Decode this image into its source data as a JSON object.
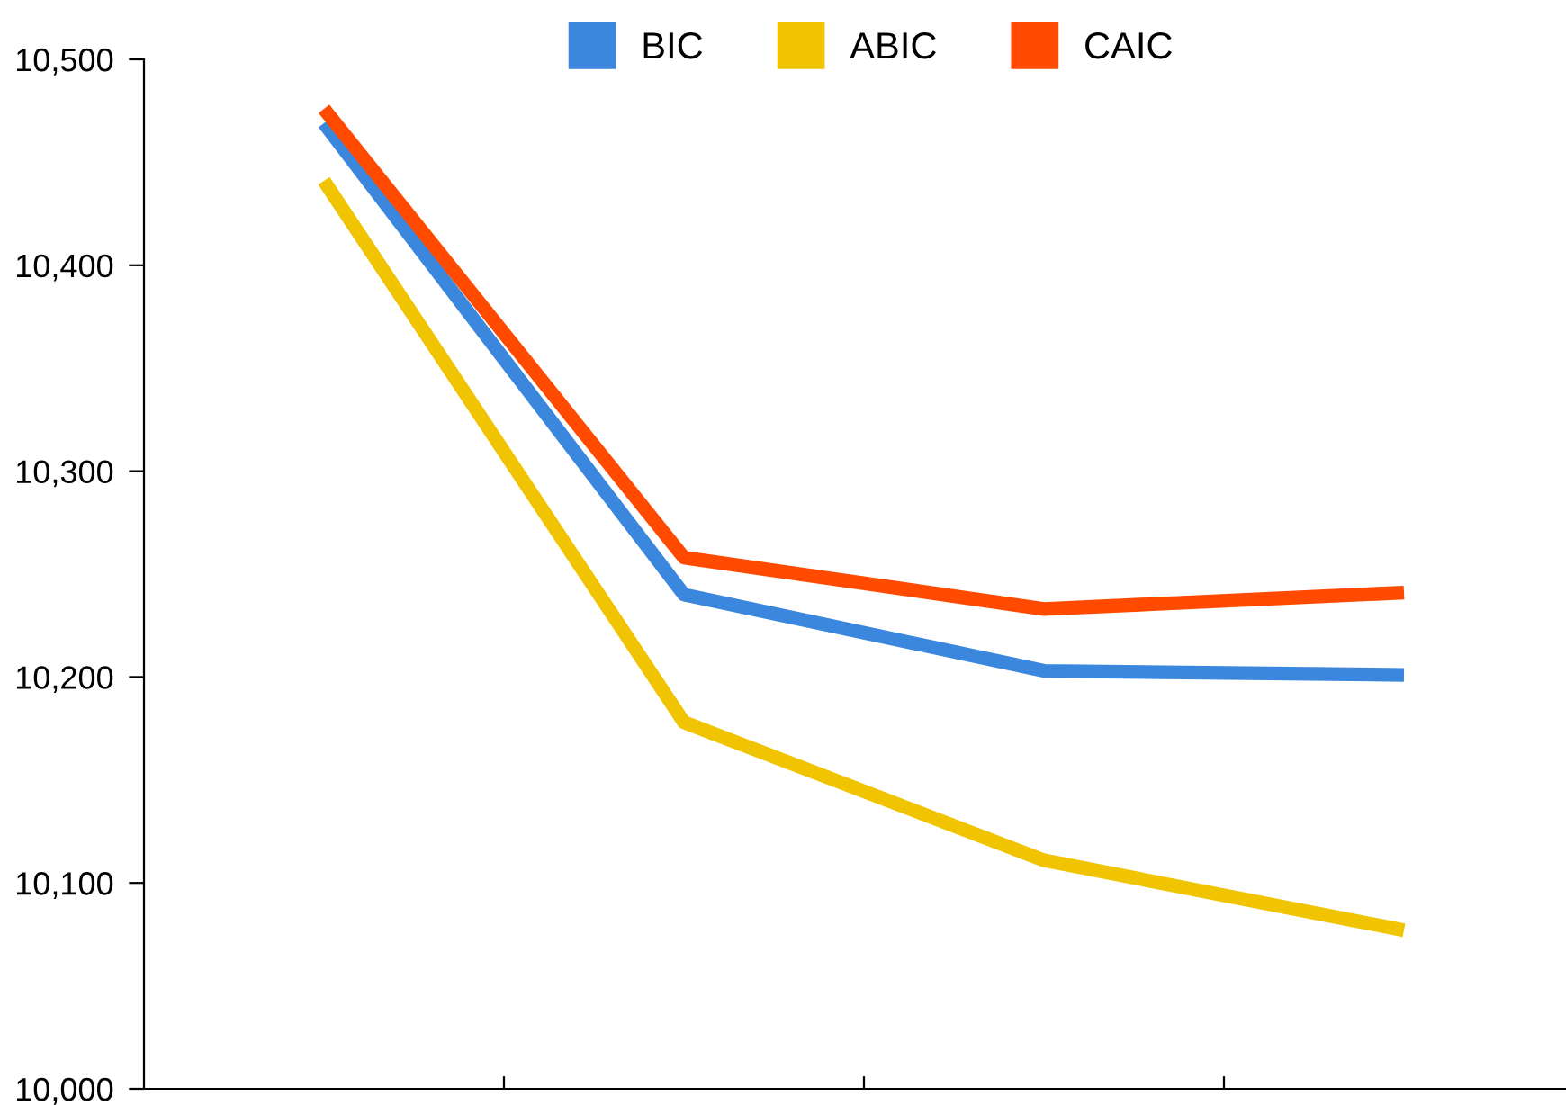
{
  "chart_data": {
    "type": "line",
    "categories": [
      null,
      null,
      null,
      null
    ],
    "series": [
      {
        "name": "BIC",
        "color": "#3a87dd",
        "values": [
          10469,
          10240,
          10203,
          10201
        ]
      },
      {
        "name": "ABIC",
        "color": "#f0c400",
        "values": [
          10441,
          10178,
          10111,
          10077
        ]
      },
      {
        "name": "CAIC",
        "color": "#ff4a00",
        "values": [
          10476,
          10258,
          10233,
          10241
        ]
      }
    ],
    "ylim": [
      10000,
      10500
    ],
    "yticks": [
      {
        "value": 10000,
        "label": "10,000"
      },
      {
        "value": 10100,
        "label": "10,100"
      },
      {
        "value": 10200,
        "label": "10,200"
      },
      {
        "value": 10300,
        "label": "10,300"
      },
      {
        "value": 10400,
        "label": "10,400"
      },
      {
        "value": 10500,
        "label": "10,500"
      }
    ],
    "grid": false,
    "legend": "top",
    "marker": "none",
    "line_style": "solid"
  }
}
